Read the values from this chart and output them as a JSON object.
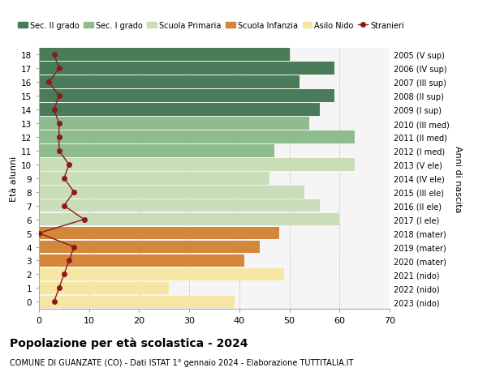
{
  "ages": [
    18,
    17,
    16,
    15,
    14,
    13,
    12,
    11,
    10,
    9,
    8,
    7,
    6,
    5,
    4,
    3,
    2,
    1,
    0
  ],
  "right_labels": [
    "2005 (V sup)",
    "2006 (IV sup)",
    "2007 (III sup)",
    "2008 (II sup)",
    "2009 (I sup)",
    "2010 (III med)",
    "2011 (II med)",
    "2012 (I med)",
    "2013 (V ele)",
    "2014 (IV ele)",
    "2015 (III ele)",
    "2016 (II ele)",
    "2017 (I ele)",
    "2018 (mater)",
    "2019 (mater)",
    "2020 (mater)",
    "2021 (nido)",
    "2022 (nido)",
    "2023 (nido)"
  ],
  "bar_values": [
    50,
    59,
    52,
    59,
    56,
    54,
    63,
    47,
    63,
    46,
    53,
    56,
    60,
    48,
    44,
    41,
    49,
    26,
    39
  ],
  "stranieri_values": [
    3,
    4,
    2,
    4,
    3,
    4,
    4,
    4,
    6,
    5,
    7,
    5,
    9,
    0,
    7,
    6,
    5,
    4,
    3
  ],
  "bar_colors": [
    "#4a7c59",
    "#4a7c59",
    "#4a7c59",
    "#4a7c59",
    "#4a7c59",
    "#8fbc8f",
    "#8fbc8f",
    "#8fbc8f",
    "#c8ddb8",
    "#c8ddb8",
    "#c8ddb8",
    "#c8ddb8",
    "#c8ddb8",
    "#d2873a",
    "#d2873a",
    "#d2873a",
    "#f5e6a3",
    "#f5e6a3",
    "#f5e6a3"
  ],
  "sec2_color": "#4a7c59",
  "sec1_color": "#8fbc8f",
  "primaria_color": "#c8ddb8",
  "infanzia_color": "#d2873a",
  "nido_color": "#f5e6a3",
  "stranieri_color": "#8b1a1a",
  "title": "Popolazione per età scolastica - 2024",
  "subtitle": "COMUNE DI GUANZATE (CO) - Dati ISTAT 1° gennaio 2024 - Elaborazione TUTTITALIA.IT",
  "ylabel_left": "Età alunni",
  "ylabel_right": "Anni di nascita",
  "xlim": [
    0,
    70
  ],
  "background_color": "#ffffff",
  "plot_bg_color": "#f5f5f5",
  "grid_color": "#d0d0d0"
}
